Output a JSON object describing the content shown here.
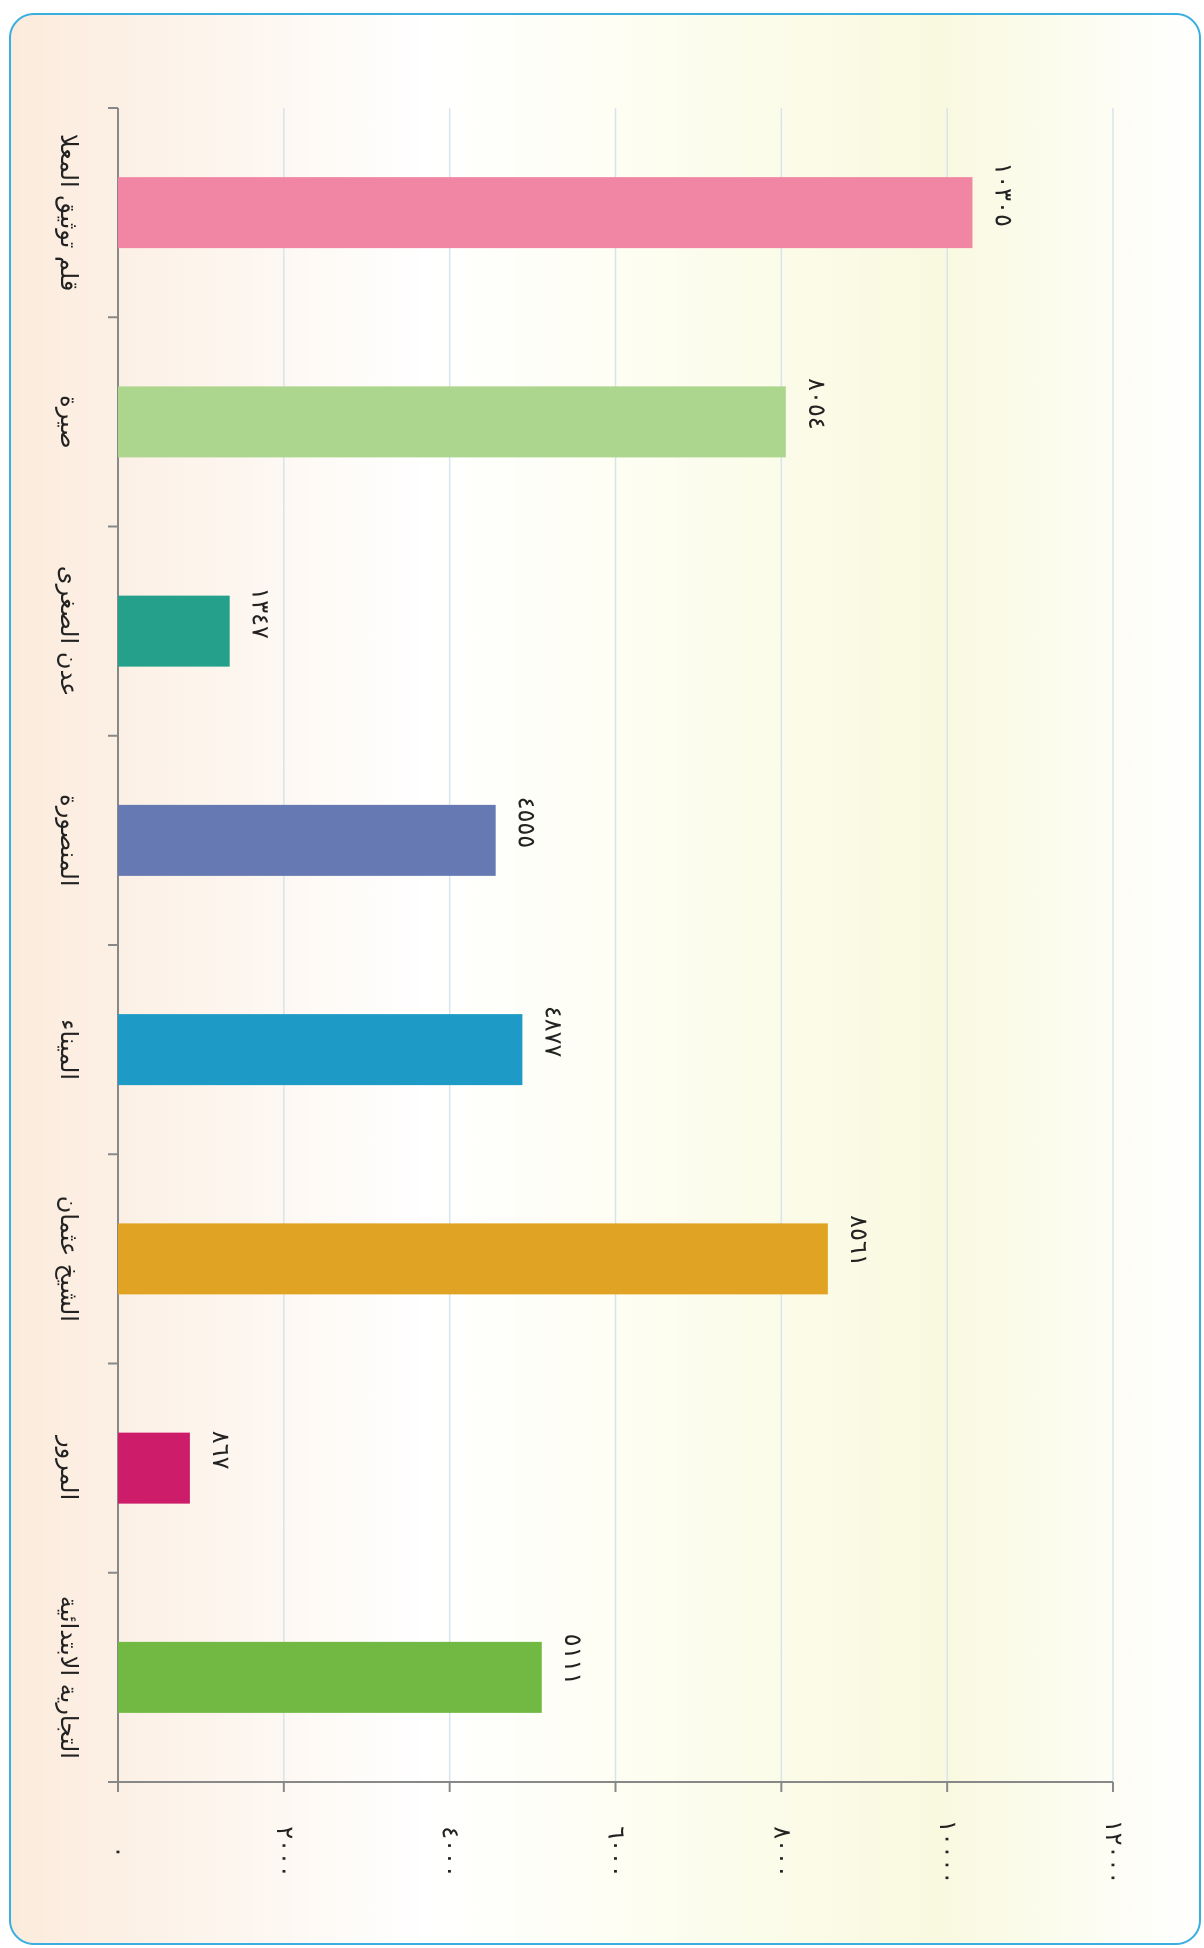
{
  "chart_data": {
    "type": "bar",
    "orientation": "horizontal",
    "categories": [
      "قلم توثيق المعلا",
      "صيرة",
      "عدن الصغرى",
      "المنصورة",
      "الميناء",
      "الشيخ عثمان",
      "المرور",
      "التجارية الابتدائية"
    ],
    "values": [
      10305,
      8054,
      1347,
      4555,
      4877,
      8561,
      867,
      5111
    ],
    "value_labels": [
      "١٠٣٠٥",
      "٨٠٥٤",
      "١٣٤٧",
      "٤٥٥٥",
      "٤٨٧٧",
      "٨٥٦١",
      "٨٦٧",
      "٥١١١"
    ],
    "colors": [
      "#f086a4",
      "#acd58d",
      "#25a08a",
      "#6779b3",
      "#1d9ac6",
      "#e0a323",
      "#cd1c6a",
      "#72b944"
    ],
    "xlim": [
      0,
      12000
    ],
    "xticks": [
      {
        "value": 0,
        "label": "٠"
      },
      {
        "value": 2000,
        "label": "٢٠٠٠"
      },
      {
        "value": 4000,
        "label": "٤٠٠٠"
      },
      {
        "value": 6000,
        "label": "٦٠٠٠"
      },
      {
        "value": 8000,
        "label": "٨٠٠٠"
      },
      {
        "value": 10000,
        "label": "١٠٠٠٠"
      },
      {
        "value": 12000,
        "label": "١٢٠٠٠"
      }
    ],
    "grid": true
  }
}
